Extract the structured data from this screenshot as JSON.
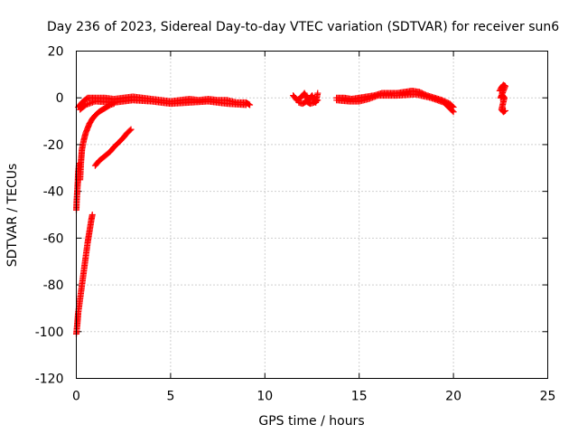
{
  "chart_data": {
    "type": "scatter",
    "title": "Day 236 of 2023, Sidereal Day-to-day VTEC variation (SDTVAR) for receiver sun6",
    "xlabel": "GPS time / hours",
    "ylabel": "SDTVAR / TECUs",
    "xlim": [
      0,
      25
    ],
    "ylim": [
      -120,
      20
    ],
    "xticks": [
      0,
      5,
      10,
      15,
      20,
      25
    ],
    "yticks": [
      -120,
      -100,
      -80,
      -60,
      -40,
      -20,
      0,
      20
    ],
    "xtick_labels": [
      "0",
      "5",
      "10",
      "15",
      "20",
      "25"
    ],
    "ytick_labels": [
      "-120",
      "-100",
      "-80",
      "-60",
      "-40",
      "-20",
      "0",
      "20"
    ],
    "grid": true,
    "marker": "+",
    "series_color": "#ff0000",
    "segments": [
      {
        "name": "main-dense-track",
        "x": [
          0.1,
          0.3,
          0.6,
          1.0,
          1.5,
          2.0,
          2.5,
          3.0,
          3.5,
          4.0,
          4.5,
          5.0,
          5.5,
          6.0,
          6.5,
          7.0,
          7.5,
          8.0,
          8.5,
          9.0,
          9.2
        ],
        "y": [
          -4,
          -2,
          0,
          0,
          0,
          -0.5,
          0,
          0.5,
          0,
          -0.5,
          -1,
          -1.5,
          -1,
          -0.5,
          -1,
          -0.5,
          -1,
          -1,
          -2,
          -2,
          -3
        ]
      },
      {
        "name": "main-dense-track-lower-edge",
        "x": [
          0.2,
          0.5,
          1.0,
          2.0,
          3.0,
          4.0,
          5.0,
          6.0,
          7.0,
          8.0,
          9.0
        ],
        "y": [
          -5,
          -3,
          -1.5,
          -2,
          -1,
          -1.5,
          -2.5,
          -2,
          -1.5,
          -2.5,
          -3
        ]
      },
      {
        "name": "recovery-arc",
        "x": [
          0.2,
          0.25,
          0.3,
          0.4,
          0.5,
          0.6,
          0.7,
          0.85,
          1.0,
          1.2,
          1.4,
          1.6,
          1.8,
          2.0
        ],
        "y": [
          -35,
          -27,
          -22,
          -18,
          -15,
          -13,
          -11,
          -9,
          -7.5,
          -6,
          -5,
          -4,
          -3,
          -2.5
        ]
      },
      {
        "name": "early-drop",
        "x": [
          0.0,
          0.02,
          0.05,
          0.08,
          0.1,
          0.15
        ],
        "y": [
          -48,
          -44,
          -40,
          -36,
          -32,
          -28
        ]
      },
      {
        "name": "steep-rise",
        "x": [
          0.0,
          0.05,
          0.1,
          0.2,
          0.3,
          0.4,
          0.5,
          0.6,
          0.7,
          0.8,
          0.85
        ],
        "y": [
          -101,
          -97,
          -92,
          -86,
          -80,
          -74,
          -68,
          -62,
          -57,
          -52,
          -50
        ]
      },
      {
        "name": "diagonal-rise",
        "x": [
          1.0,
          1.2,
          1.5,
          1.8,
          2.0,
          2.2,
          2.5,
          2.7,
          2.9
        ],
        "y": [
          -29,
          -27,
          -25,
          -23,
          -21,
          -19.5,
          -17,
          -15,
          -13.5
        ]
      },
      {
        "name": "cluster-12h",
        "x": [
          11.5,
          11.7,
          11.9,
          12.1,
          12.3,
          12.5,
          12.7,
          12.8
        ],
        "y": [
          1,
          -1,
          0,
          2,
          -1,
          1,
          -2,
          2
        ]
      },
      {
        "name": "cluster-12h-lower",
        "x": [
          11.8,
          12.0,
          12.2,
          12.4,
          12.6,
          12.8
        ],
        "y": [
          -2,
          -2.5,
          -1.5,
          -2.5,
          -2,
          -1
        ]
      },
      {
        "name": "band-14-20h",
        "x": [
          13.8,
          14.2,
          14.6,
          15.0,
          15.4,
          15.8,
          16.2,
          16.6,
          17.0,
          17.4,
          17.8,
          18.2,
          18.6,
          19.0,
          19.4,
          19.8,
          20.0
        ],
        "y": [
          0,
          0,
          -0.5,
          0,
          0.5,
          1,
          2,
          2,
          2,
          2.5,
          3,
          2.5,
          1,
          0,
          -1,
          -2.5,
          -4
        ]
      },
      {
        "name": "band-14-20h-lower",
        "x": [
          13.8,
          14.5,
          15.0,
          15.5,
          16.0,
          17.0,
          18.0,
          18.8,
          19.5,
          20.0
        ],
        "y": [
          -1,
          -1.5,
          -1.5,
          -0.5,
          1,
          1,
          1.5,
          0,
          -2,
          -6
        ]
      },
      {
        "name": "cluster-22.6h",
        "x": [
          22.45,
          22.55,
          22.65,
          22.75,
          22.5,
          22.6,
          22.7,
          22.55,
          22.65,
          22.75
        ],
        "y": [
          3,
          4.5,
          5.5,
          5,
          0,
          1,
          0,
          -5,
          -6,
          -5.5
        ]
      }
    ]
  }
}
